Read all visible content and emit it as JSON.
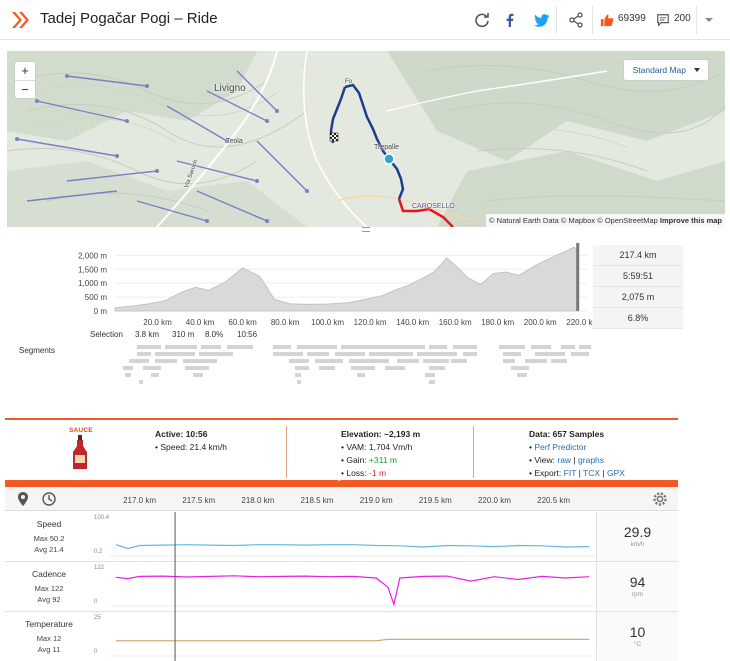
{
  "header": {
    "title": "Tadej Pogačar Pogi – Ride",
    "kudos_count": "69399",
    "comments_count": "200",
    "colors": {
      "brand": "#f15a22",
      "facebook": "#3b5998",
      "twitter": "#1da1f2",
      "kudos": "#f15a22"
    }
  },
  "map": {
    "map_type_label": "Standard Map",
    "zoom_in": "+",
    "zoom_out": "−",
    "places": {
      "livigno": "Livigno",
      "teola": "Teola",
      "trepalle": "Trepalle",
      "carosello": "CAROSELLO",
      "zone1": "Fo",
      "road": "Via Saroch"
    },
    "attribution": {
      "sources": "© Natural Earth Data © Mapbox © OpenStreetMap",
      "improve": "Improve this map"
    },
    "colors": {
      "route_done": "#1d3d8f",
      "route_ahead": "#e8141c",
      "current_marker": "#31a3d5",
      "lifts": "#7b7fc6"
    }
  },
  "elevation": {
    "y_ticks": [
      "2,000 m",
      "1,500 m",
      "1,000 m",
      "500 m",
      "0 m"
    ],
    "x_ticks": [
      "20.0 km",
      "40.0 km",
      "60.0 km",
      "80.0 km",
      "100.0 km",
      "120.0 km",
      "140.0 km",
      "160.0 km",
      "180.0 km",
      "200.0 km",
      "220.0 km"
    ],
    "cursor_km": 217.4,
    "stats": [
      "217.4 km",
      "5:59:51",
      "2,075 m",
      "6.8%"
    ],
    "selection": {
      "label": "Selection",
      "values": [
        "3.8 km",
        "310 m",
        "8.0%",
        "10:56"
      ]
    },
    "segments_label": "Segments",
    "profile_km": [
      0,
      8,
      16,
      24,
      32,
      38,
      44,
      52,
      60,
      68,
      75,
      82,
      90,
      100,
      110,
      118,
      126,
      132,
      138,
      144,
      150,
      156,
      160,
      166,
      172,
      178,
      184,
      190,
      198,
      206,
      212,
      216,
      218
    ],
    "profile_m": [
      120,
      180,
      260,
      380,
      700,
      850,
      740,
      1050,
      1550,
      1250,
      420,
      260,
      240,
      250,
      300,
      420,
      560,
      760,
      920,
      1150,
      1400,
      1900,
      1650,
      1200,
      950,
      1350,
      1400,
      1280,
      1650,
      1950,
      2150,
      2300,
      2100
    ],
    "colors": {
      "fill": "#d9d9d9",
      "line": "#bcbcbc"
    }
  },
  "info": {
    "sauce_label": "SAUCE",
    "active": {
      "title": "Active: 10:56",
      "speed": "• Speed: 21.4 km/h"
    },
    "elevation": {
      "title": "Elevation: ~2,193 m",
      "vam": "• VAM: 1,704 Vm/h",
      "gain_label": "• Gain:",
      "gain_value": "+311 m",
      "loss_label": "• Loss:",
      "loss_value": "-1 m"
    },
    "data": {
      "title": "Data: 657 Samples",
      "perf_predictor": "Perf Predictor",
      "view_label": "• View:",
      "view_raw": "raw",
      "view_sep": "|",
      "view_graphs": "graphs",
      "export_label": "• Export:",
      "export_fit": "FIT",
      "export_tcx": "TCX",
      "export_gpx": "GPX"
    },
    "expand_glyph": "⌃"
  },
  "detail": {
    "x_ticks": [
      "217.0 km",
      "217.5 km",
      "218.0 km",
      "218.5 km",
      "219.0 km",
      "219.5 km",
      "220.0 km",
      "220.5 km"
    ],
    "cursor_km": 217.3,
    "streams": [
      {
        "name": "Speed",
        "max": "Max 50.2",
        "avg": "Avg 21.4",
        "axis_top": "100.4",
        "axis_bottom": "0.2",
        "current": "29.9",
        "unit": "km/h",
        "color": "#62b9e0"
      },
      {
        "name": "Cadence",
        "max": "Max 122",
        "avg": "Avg 92",
        "axis_top": "122",
        "axis_bottom": "0",
        "current": "94",
        "unit": "rpm",
        "color": "#e620e6"
      },
      {
        "name": "Temperature",
        "max": "Max 12",
        "avg": "Avg 11",
        "axis_top": "25",
        "axis_bottom": "0",
        "current": "10",
        "unit": "°C",
        "color": "#c8a26a"
      }
    ]
  },
  "chart_data": [
    {
      "type": "line",
      "series": [
        {
          "name": "Speed",
          "unit": "km/h"
        }
      ],
      "ylim": [
        0.2,
        100.4
      ],
      "x": [
        216.8,
        216.9,
        217.0,
        217.2,
        217.4,
        217.6,
        217.8,
        218.0,
        218.2,
        218.4,
        218.6,
        218.8,
        219.0,
        219.2,
        219.4,
        219.6,
        219.8,
        220.0,
        220.2,
        220.4,
        220.6,
        220.8
      ],
      "values": [
        30,
        20,
        28,
        29,
        30,
        29,
        28,
        30,
        30,
        29,
        30,
        30,
        28,
        27,
        24,
        28,
        27,
        25,
        28,
        27,
        24,
        25
      ]
    },
    {
      "type": "line",
      "series": [
        {
          "name": "Cadence",
          "unit": "rpm"
        }
      ],
      "ylim": [
        0,
        122
      ],
      "x": [
        216.8,
        216.9,
        217.0,
        217.2,
        217.4,
        217.6,
        217.8,
        218.0,
        218.2,
        218.4,
        218.6,
        218.8,
        219.0,
        219.1,
        219.15,
        219.2,
        219.4,
        219.6,
        219.8,
        220.0,
        220.2,
        220.4,
        220.6,
        220.8
      ],
      "values": [
        92,
        88,
        95,
        96,
        93,
        95,
        97,
        94,
        95,
        96,
        94,
        95,
        90,
        60,
        5,
        90,
        95,
        96,
        80,
        94,
        85,
        95,
        90,
        94
      ]
    },
    {
      "type": "line",
      "series": [
        {
          "name": "Temperature",
          "unit": "°C"
        }
      ],
      "ylim": [
        0,
        25
      ],
      "x": [
        216.8,
        217.3,
        217.8,
        218.4,
        219.0,
        219.1,
        219.6,
        220.2,
        220.8
      ],
      "values": [
        10,
        10,
        10,
        10,
        10,
        11,
        11,
        11,
        11
      ]
    }
  ]
}
